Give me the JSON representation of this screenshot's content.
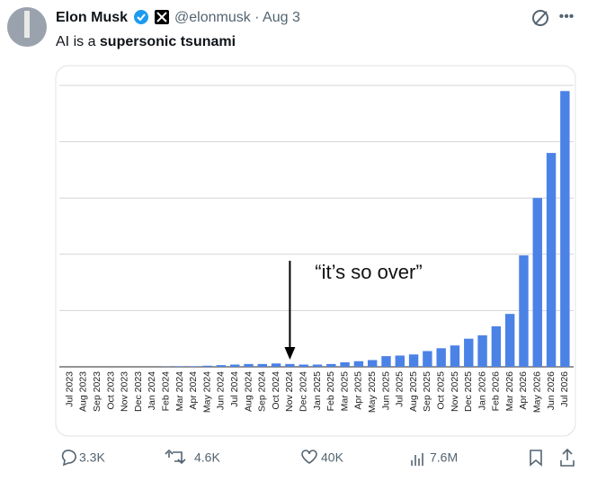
{
  "tweet": {
    "name": "Elon Musk",
    "meta": "@elonmusk · Aug 3",
    "text": "AI is a ",
    "text_bold": "supersonic tsunami"
  },
  "chart_data": {
    "type": "bar",
    "categories": [
      "Jul 2023",
      "Aug 2023",
      "Sep 2023",
      "Oct 2023",
      "Nov 2023",
      "Dec 2023",
      "Jan 2024",
      "Feb 2024",
      "Mar 2024",
      "Apr 2024",
      "May 2024",
      "Jun 2024",
      "Jul 2024",
      "Aug 2024",
      "Sep 2024",
      "Oct 2024",
      "Nov 2024",
      "Dec 2024",
      "Jan 2025",
      "Feb 2025",
      "Mar 2025",
      "Apr 2025",
      "May 2025",
      "Jun 2025",
      "Jul 2025",
      "Aug 2025",
      "Sep 2025",
      "Oct 2025",
      "Nov 2025",
      "Dec 2025",
      "Jan 2026",
      "Feb 2026",
      "Mar 2026",
      "Apr 2026",
      "May 2026",
      "Jun 2026",
      "Jul 2026"
    ],
    "values": [
      0,
      0,
      0,
      0,
      0,
      0,
      0,
      0.005,
      0.01,
      0.01,
      0.02,
      0.03,
      0.04,
      0.05,
      0.05,
      0.06,
      0.05,
      0.04,
      0.04,
      0.05,
      0.08,
      0.1,
      0.12,
      0.19,
      0.2,
      0.22,
      0.28,
      0.33,
      0.38,
      0.5,
      0.56,
      0.72,
      0.94,
      1.98,
      3.0,
      3.8,
      4.9
    ],
    "color": "#4b82e6",
    "ylim": [
      0,
      5
    ],
    "yticks": [
      0,
      1,
      2,
      3,
      4,
      5
    ],
    "grid": true,
    "annotation": "“it’s so over”"
  },
  "footer": {
    "replies": "3.3K",
    "retweets": "4.6K",
    "likes": "40K",
    "views": "7.6M"
  }
}
